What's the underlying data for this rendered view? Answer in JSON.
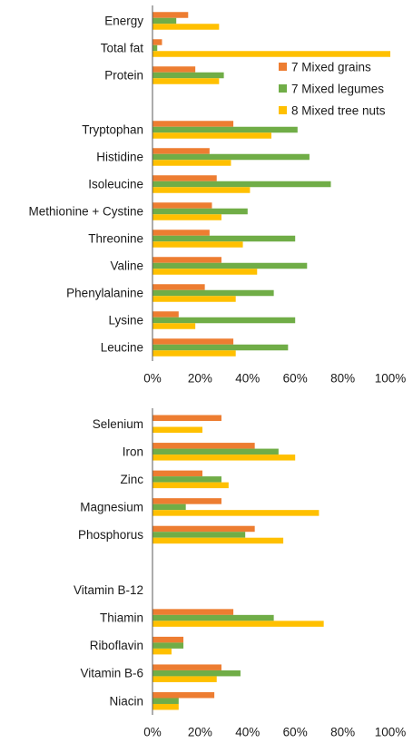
{
  "colors": {
    "grains": "#ED7D31",
    "legumes": "#70AD47",
    "nuts": "#FFC000",
    "axis": "#595959"
  },
  "chart_data": [
    {
      "type": "bar",
      "orientation": "horizontal",
      "categories": [
        "Energy",
        "Total fat",
        "Protein",
        "",
        "Tryptophan",
        "Histidine",
        "Isoleucine",
        "Methionine + Cystine",
        "Threonine",
        "Valine",
        "Phenylalanine",
        "Lysine",
        "Leucine"
      ],
      "series": [
        {
          "name": "7 Mixed grains",
          "color": "#ED7D31",
          "values": [
            15,
            4,
            18,
            null,
            34,
            24,
            27,
            25,
            24,
            29,
            22,
            11,
            34
          ]
        },
        {
          "name": "7 Mixed legumes",
          "color": "#70AD47",
          "values": [
            10,
            2,
            30,
            null,
            61,
            66,
            75,
            40,
            60,
            65,
            51,
            60,
            57
          ]
        },
        {
          "name": "8 Mixed tree nuts",
          "color": "#FFC000",
          "values": [
            28,
            100,
            28,
            null,
            50,
            33,
            41,
            29,
            38,
            44,
            35,
            18,
            35
          ]
        }
      ],
      "xlim": [
        0,
        100
      ],
      "xticks": [
        "0%",
        "20%",
        "40%",
        "60%",
        "80%",
        "100%"
      ],
      "legend": "top-right",
      "grid": false
    },
    {
      "type": "bar",
      "orientation": "horizontal",
      "categories": [
        "Selenium",
        "Iron",
        "Zinc",
        "Magnesium",
        "Phosphorus",
        "",
        "Vitamin B-12",
        "Thiamin",
        "Riboflavin",
        "Vitamin B-6",
        "Niacin"
      ],
      "series": [
        {
          "name": "7 Mixed grains",
          "color": "#ED7D31",
          "values": [
            29,
            43,
            21,
            29,
            43,
            null,
            0,
            34,
            13,
            29,
            26
          ]
        },
        {
          "name": "7 Mixed legumes",
          "color": "#70AD47",
          "values": [
            0,
            53,
            29,
            14,
            39,
            null,
            0,
            51,
            13,
            37,
            11
          ]
        },
        {
          "name": "8 Mixed tree nuts",
          "color": "#FFC000",
          "values": [
            21,
            60,
            32,
            70,
            55,
            null,
            0,
            72,
            8,
            27,
            11
          ]
        }
      ],
      "xlim": [
        0,
        100
      ],
      "xticks": [
        "0%",
        "20%",
        "40%",
        "60%",
        "80%",
        "100%"
      ],
      "grid": false
    }
  ]
}
